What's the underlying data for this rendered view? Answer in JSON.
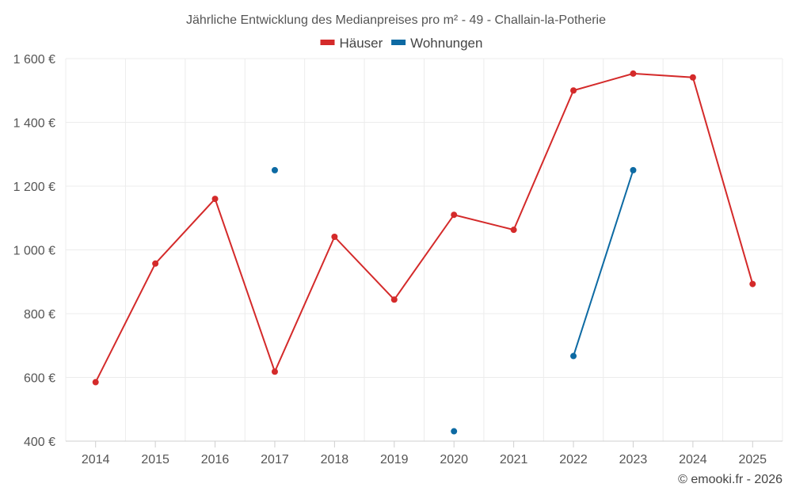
{
  "chart_data": {
    "type": "line",
    "title": "Jährliche Entwicklung des Medianpreises pro m² - 49 - Challain-la-Potherie",
    "xlabel": "",
    "ylabel": "",
    "categories": [
      "2014",
      "2015",
      "2016",
      "2017",
      "2018",
      "2019",
      "2020",
      "2021",
      "2022",
      "2023",
      "2024",
      "2025"
    ],
    "ylim": [
      400,
      1600
    ],
    "yticks": [
      400,
      600,
      800,
      1000,
      1200,
      1400,
      1600
    ],
    "ytick_labels": [
      "400 €",
      "600 €",
      "800 €",
      "1 000 €",
      "1 200 €",
      "1 400 €",
      "1 600 €"
    ],
    "grid": true,
    "legend_position": "top-center",
    "series": [
      {
        "name": "Häuser",
        "color": "#d42a2a",
        "values": [
          585,
          957,
          1160,
          618,
          1041,
          844,
          1110,
          1063,
          1500,
          1553,
          1541,
          893
        ]
      },
      {
        "name": "Wohnungen",
        "color": "#0d6aa3",
        "values": [
          null,
          null,
          null,
          1250,
          null,
          null,
          431,
          null,
          667,
          1250,
          null,
          null
        ]
      }
    ],
    "credit": "© emooki.fr - 2026"
  }
}
